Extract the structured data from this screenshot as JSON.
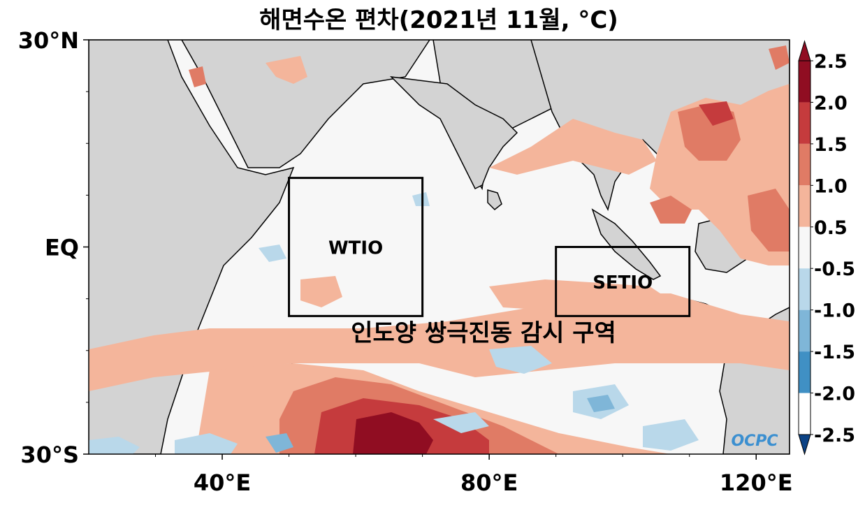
{
  "title": "해면수온 편차(2021년 11월, °C)",
  "axes": {
    "lat_ticks": [
      {
        "lat": 30,
        "label": "30°N"
      },
      {
        "lat": 0,
        "label": "EQ"
      },
      {
        "lat": -30,
        "label": "30°S"
      }
    ],
    "lon_ticks": [
      {
        "lon": 40,
        "label": "40°E"
      },
      {
        "lon": 80,
        "label": "80°E"
      },
      {
        "lon": 120,
        "label": "120°E"
      }
    ],
    "lon_range": [
      20,
      125
    ],
    "lat_range": [
      -30,
      30
    ]
  },
  "regions": [
    {
      "name": "WTIO",
      "lon": [
        50,
        70
      ],
      "lat": [
        -10,
        10
      ]
    },
    {
      "name": "SETIO",
      "lon": [
        90,
        110
      ],
      "lat": [
        -10,
        0
      ]
    }
  ],
  "annotation": "인도양 쌍극진동 감시 구역",
  "colorbar": {
    "levels": [
      "2.5",
      "2.0",
      "1.5",
      "1.0",
      "0.5",
      "-0.5",
      "-1.0",
      "-1.5",
      "-2.0",
      "-2.5"
    ],
    "colors": [
      "#900d22",
      "#c53b3d",
      "#e07b65",
      "#f4b59b",
      "#f7f7f7",
      "#b9d8ea",
      "#7fb6d8",
      "#4090c4",
      "#1c66a9",
      "#0b4285"
    ]
  },
  "colors": {
    "land": "#d3d3d3",
    "ocean_neutral": "#f7f7f7",
    "warm1": "#f4b59b",
    "warm2": "#e07b65",
    "warm3": "#c53b3d",
    "warm4": "#900d22",
    "cool1": "#b9d8ea",
    "cool2": "#7fb6d8",
    "cool3": "#4090c4"
  },
  "logo_text": "OCPC"
}
